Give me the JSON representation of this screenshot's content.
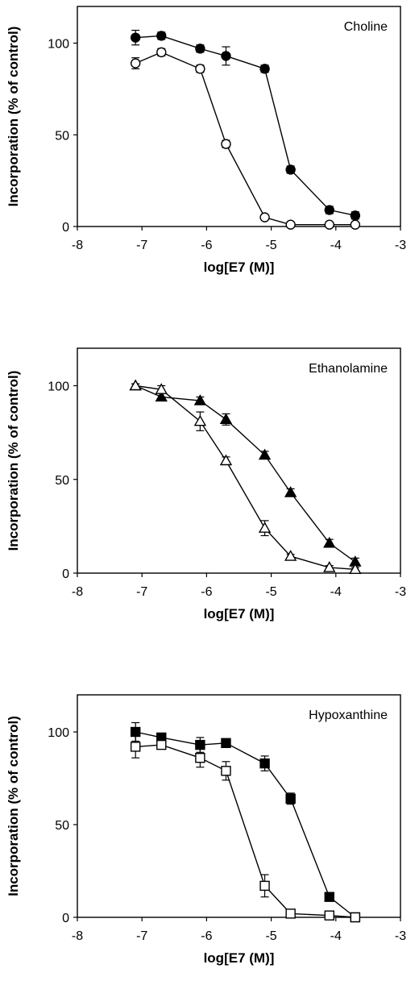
{
  "chart_data": [
    {
      "type": "scatter",
      "title": "Choline",
      "xlabel": "log[E7 (M)]",
      "ylabel": "Incorporation (% of control)",
      "xlim": [
        -8,
        -3
      ],
      "ylim": [
        0,
        120
      ],
      "xticks": [
        -8,
        -7,
        -6,
        -5,
        -4,
        -3
      ],
      "yticks": [
        0,
        50,
        100
      ],
      "grid": false,
      "legend": "none",
      "series": [
        {
          "marker": "circle",
          "filled": true,
          "x": [
            -7.1,
            -6.7,
            -6.1,
            -5.7,
            -5.1,
            -4.7,
            -4.1,
            -3.7
          ],
          "y": [
            103,
            104,
            97,
            93,
            86,
            31,
            9,
            6
          ],
          "err": [
            4,
            2,
            2,
            5,
            2,
            2,
            2,
            2
          ]
        },
        {
          "marker": "circle",
          "filled": false,
          "x": [
            -7.1,
            -6.7,
            -6.1,
            -5.7,
            -5.1,
            -4.7,
            -4.1,
            -3.7
          ],
          "y": [
            89,
            95,
            86,
            45,
            5,
            1,
            1,
            1
          ],
          "err": [
            3,
            2,
            2,
            2,
            1,
            1,
            1,
            1
          ]
        }
      ]
    },
    {
      "type": "scatter",
      "title": "Ethanolamine",
      "xlabel": "log[E7 (M)]",
      "ylabel": "Incorporation (% of control)",
      "xlim": [
        -8,
        -3
      ],
      "ylim": [
        0,
        120
      ],
      "xticks": [
        -8,
        -7,
        -6,
        -5,
        -4,
        -3
      ],
      "yticks": [
        0,
        50,
        100
      ],
      "grid": false,
      "legend": "none",
      "series": [
        {
          "marker": "triangle",
          "filled": true,
          "x": [
            -7.1,
            -6.7,
            -6.1,
            -5.7,
            -5.1,
            -4.7,
            -4.1,
            -3.7
          ],
          "y": [
            100,
            94,
            92,
            82,
            63,
            43,
            16,
            6
          ],
          "err": [
            1,
            2,
            2,
            3,
            2,
            2,
            2,
            2
          ]
        },
        {
          "marker": "triangle",
          "filled": false,
          "x": [
            -7.1,
            -6.7,
            -6.1,
            -5.7,
            -5.1,
            -4.7,
            -4.1,
            -3.7
          ],
          "y": [
            100,
            98,
            81,
            60,
            24,
            9,
            3,
            2
          ],
          "err": [
            1,
            2,
            5,
            2,
            4,
            1,
            1,
            1
          ]
        }
      ]
    },
    {
      "type": "scatter",
      "title": "Hypoxanthine",
      "xlabel": "log[E7 (M)]",
      "ylabel": "Incorporation (% of control)",
      "xlim": [
        -8,
        -3
      ],
      "ylim": [
        0,
        120
      ],
      "xticks": [
        -8,
        -7,
        -6,
        -5,
        -4,
        -3
      ],
      "yticks": [
        0,
        50,
        100
      ],
      "grid": false,
      "legend": "none",
      "series": [
        {
          "marker": "square",
          "filled": true,
          "x": [
            -7.1,
            -6.7,
            -6.1,
            -5.7,
            -5.1,
            -4.7,
            -4.1,
            -3.7
          ],
          "y": [
            100,
            97,
            93,
            94,
            83,
            64,
            11,
            0
          ],
          "err": [
            5,
            2,
            4,
            2,
            4,
            3,
            1,
            1
          ]
        },
        {
          "marker": "square",
          "filled": false,
          "x": [
            -7.1,
            -6.7,
            -6.1,
            -5.7,
            -5.1,
            -4.7,
            -4.1,
            -3.7
          ],
          "y": [
            92,
            93,
            86,
            79,
            17,
            2,
            1,
            0
          ],
          "err": [
            6,
            2,
            5,
            5,
            6,
            1,
            1,
            1
          ]
        }
      ]
    }
  ]
}
